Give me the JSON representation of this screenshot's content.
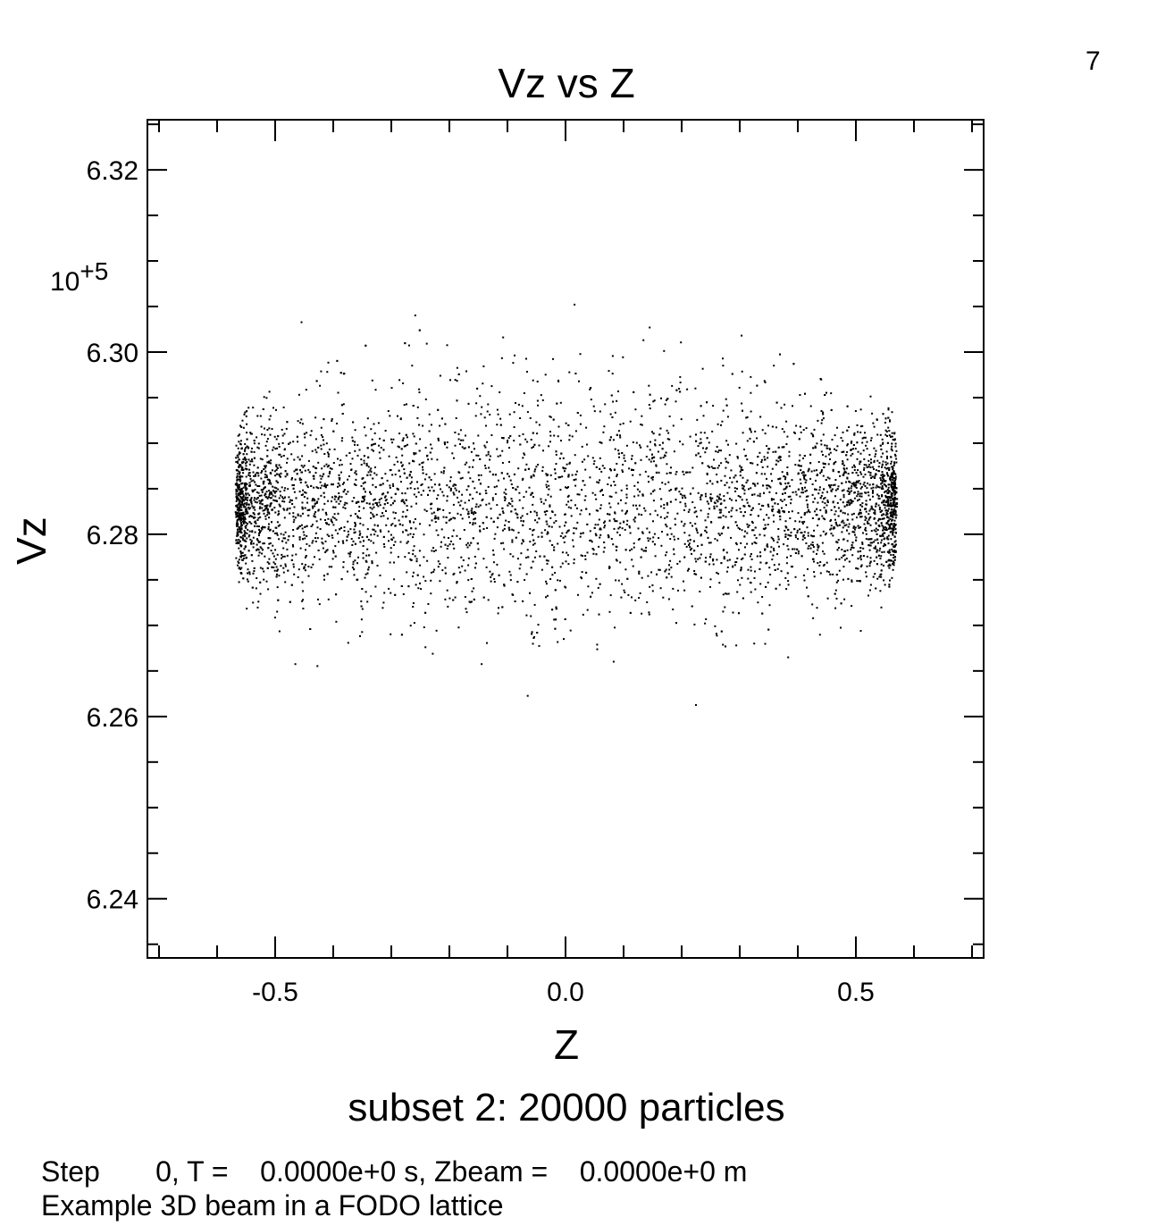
{
  "page_number": "7",
  "chart_data": {
    "type": "scatter",
    "title": "Vz vs Z",
    "xlabel": "Z",
    "ylabel": "Vz",
    "y_exponent_base": "10",
    "y_exponent_power": "+5",
    "xlim": [
      -0.72,
      0.72
    ],
    "ylim": [
      6.2335,
      6.3255
    ],
    "x_ticks": [
      {
        "value": -0.5,
        "label": "-0.5"
      },
      {
        "value": 0.0,
        "label": "0.0"
      },
      {
        "value": 0.5,
        "label": "0.5"
      }
    ],
    "x_minor_step": 0.1,
    "y_ticks": [
      {
        "value": 6.24,
        "label": "6.24"
      },
      {
        "value": 6.26,
        "label": "6.26"
      },
      {
        "value": 6.28,
        "label": "6.28"
      },
      {
        "value": 6.3,
        "label": "6.30"
      },
      {
        "value": 6.32,
        "label": "6.32"
      }
    ],
    "y_minor_step": 0.005,
    "grid": false,
    "subset_label": "subset 2: 20000 particles",
    "particle_count": 20000,
    "distribution": {
      "shape": "elliptical",
      "z_center": 0.0,
      "z_half_width": 0.57,
      "vz_center": 6.2835,
      "vz_half_height_core": 0.012,
      "vz_half_height_edge": 0.006,
      "vz_spread_max": 0.034
    }
  },
  "footer": {
    "step_line": "Step       0, T =    0.0000e+0 s, Zbeam =    0.0000e+0 m",
    "run_title": "Example 3D beam in a FODO lattice"
  }
}
